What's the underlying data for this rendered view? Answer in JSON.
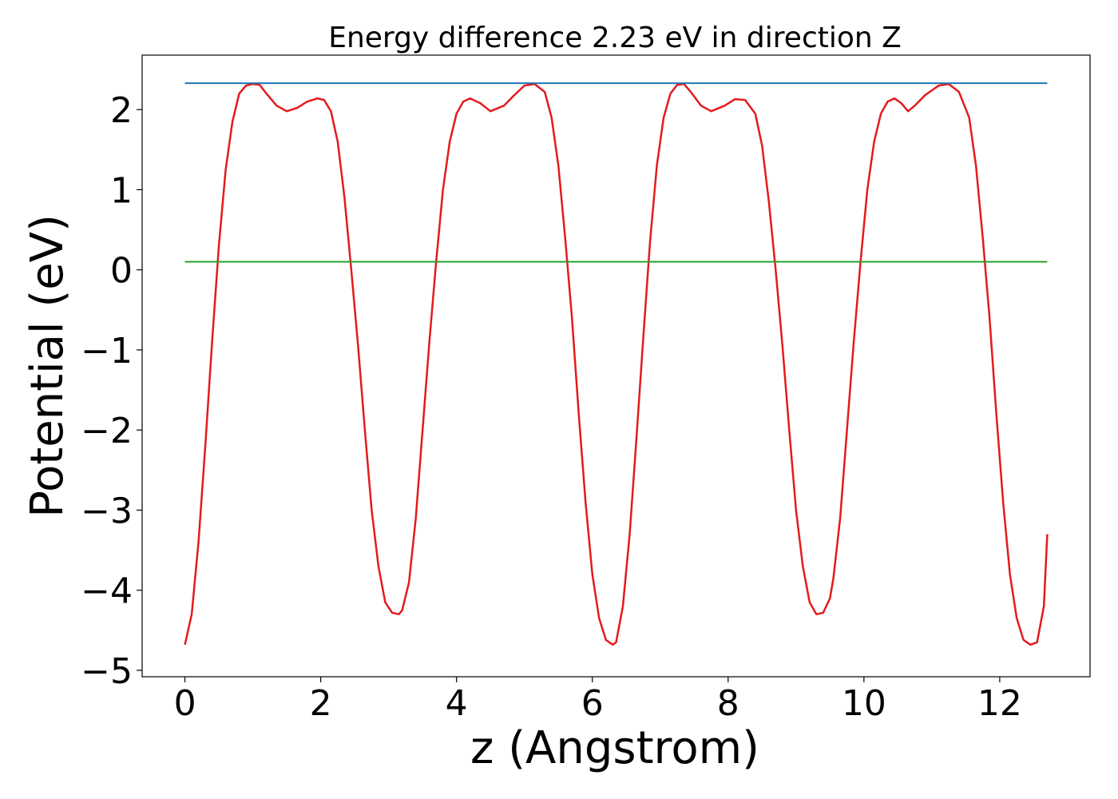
{
  "chart_data": {
    "type": "line",
    "title": "Energy difference 2.23 eV in direction Z",
    "xlabel": "z (Angstrom)",
    "ylabel": "Potential (eV)",
    "xlim": [
      -0.63,
      13.33
    ],
    "ylim": [
      -5.08,
      2.68
    ],
    "xticks": [
      0,
      2,
      4,
      6,
      8,
      10,
      12
    ],
    "xtick_labels": [
      "0",
      "2",
      "4",
      "6",
      "8",
      "10",
      "12"
    ],
    "yticks": [
      -5,
      -4,
      -3,
      -2,
      -1,
      0,
      1,
      2
    ],
    "ytick_labels": [
      "−5",
      "−4",
      "−3",
      "−2",
      "−1",
      "0",
      "1",
      "2"
    ],
    "grid": false,
    "series": [
      {
        "color": "#e41a1c",
        "x": [
          0.0,
          0.1,
          0.2,
          0.3,
          0.4,
          0.5,
          0.6,
          0.7,
          0.8,
          0.9,
          1.0,
          1.1,
          1.2,
          1.35,
          1.5,
          1.65,
          1.8,
          1.95,
          2.05,
          2.15,
          2.25,
          2.35,
          2.45,
          2.55,
          2.65,
          2.75,
          2.85,
          2.95,
          3.05,
          3.15,
          3.2,
          3.3,
          3.4,
          3.5,
          3.6,
          3.7,
          3.8,
          3.9,
          4.0,
          4.1,
          4.2,
          4.35,
          4.5,
          4.7,
          4.85,
          5.0,
          5.15,
          5.3,
          5.4,
          5.5,
          5.6,
          5.7,
          5.8,
          5.9,
          6.0,
          6.1,
          6.2,
          6.3,
          6.35,
          6.45,
          6.55,
          6.65,
          6.75,
          6.85,
          6.95,
          7.05,
          7.15,
          7.25,
          7.35,
          7.45,
          7.6,
          7.75,
          7.95,
          8.1,
          8.25,
          8.4,
          8.5,
          8.6,
          8.7,
          8.8,
          8.9,
          9.0,
          9.1,
          9.2,
          9.3,
          9.4,
          9.5,
          9.55,
          9.65,
          9.75,
          9.85,
          9.95,
          10.05,
          10.15,
          10.25,
          10.35,
          10.45,
          10.55,
          10.65,
          10.75,
          10.9,
          11.1,
          11.25,
          11.4,
          11.55,
          11.65,
          11.75,
          11.85,
          11.95,
          12.05,
          12.15,
          12.25,
          12.35,
          12.45,
          12.55,
          12.65,
          12.7
        ],
        "y": [
          -4.68,
          -4.3,
          -3.4,
          -2.2,
          -0.9,
          0.3,
          1.25,
          1.85,
          2.2,
          2.3,
          2.32,
          2.31,
          2.2,
          2.05,
          1.98,
          2.02,
          2.1,
          2.14,
          2.12,
          1.98,
          1.6,
          0.9,
          0.0,
          -0.95,
          -2.0,
          -3.0,
          -3.7,
          -4.15,
          -4.28,
          -4.3,
          -4.25,
          -3.9,
          -3.1,
          -2.0,
          -0.9,
          0.1,
          1.0,
          1.6,
          1.95,
          2.1,
          2.14,
          2.08,
          1.98,
          2.05,
          2.18,
          2.3,
          2.32,
          2.22,
          1.9,
          1.3,
          0.4,
          -0.6,
          -1.8,
          -2.9,
          -3.8,
          -4.35,
          -4.62,
          -4.68,
          -4.65,
          -4.2,
          -3.3,
          -2.1,
          -0.85,
          0.35,
          1.3,
          1.9,
          2.2,
          2.31,
          2.32,
          2.22,
          2.05,
          1.98,
          2.05,
          2.13,
          2.12,
          1.95,
          1.55,
          0.85,
          0.0,
          -0.95,
          -2.0,
          -3.0,
          -3.7,
          -4.15,
          -4.3,
          -4.28,
          -4.1,
          -3.85,
          -3.1,
          -2.0,
          -0.9,
          0.1,
          1.0,
          1.6,
          1.95,
          2.1,
          2.14,
          2.08,
          1.98,
          2.05,
          2.18,
          2.3,
          2.32,
          2.22,
          1.9,
          1.3,
          0.4,
          -0.6,
          -1.8,
          -2.9,
          -3.8,
          -4.35,
          -4.62,
          -4.68,
          -4.65,
          -4.2,
          -3.3
        ]
      },
      {
        "color": "#1f77b4",
        "x": [
          0.0,
          12.7
        ],
        "y": [
          2.33,
          2.33
        ]
      },
      {
        "color": "#2ca02c",
        "x": [
          0.0,
          12.7
        ],
        "y": [
          0.1,
          0.1
        ]
      }
    ]
  }
}
